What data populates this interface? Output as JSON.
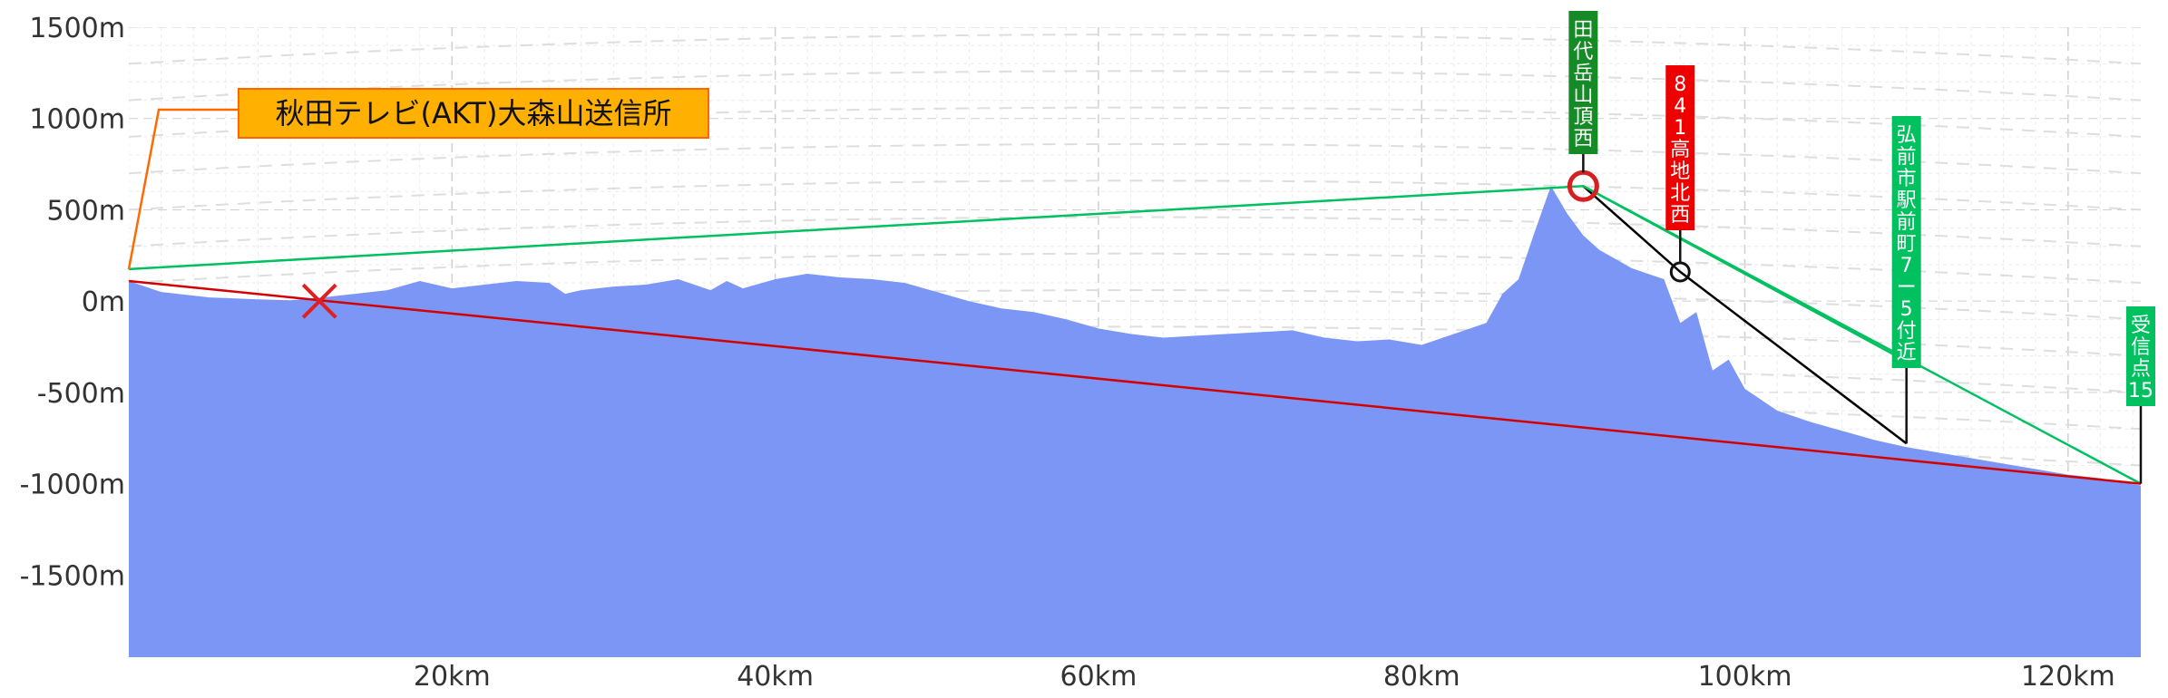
{
  "chart_data": {
    "type": "area",
    "x_unit": "km",
    "y_unit": "m",
    "xlim": [
      0,
      124.5
    ],
    "ylim": [
      -1950,
      1500
    ],
    "x_ticks": [
      {
        "value": 20,
        "label": "20km"
      },
      {
        "value": 40,
        "label": "40km"
      },
      {
        "value": 60,
        "label": "60km"
      },
      {
        "value": 80,
        "label": "80km"
      },
      {
        "value": 100,
        "label": "100km"
      },
      {
        "value": 120,
        "label": "120km"
      }
    ],
    "y_ticks": [
      {
        "value": 1500,
        "label": "1500m"
      },
      {
        "value": 1000,
        "label": "1000m"
      },
      {
        "value": 500,
        "label": "500m"
      },
      {
        "value": 0,
        "label": "0m"
      },
      {
        "value": -500,
        "label": "-500m"
      },
      {
        "value": -1000,
        "label": "-1000m"
      },
      {
        "value": -1500,
        "label": "-1500m"
      }
    ],
    "grid": true,
    "terrain_profile": {
      "x": [
        0,
        2,
        5,
        8,
        10,
        12,
        14,
        16,
        18,
        20,
        22,
        24,
        26,
        27,
        28,
        30,
        32,
        34,
        36,
        37,
        38,
        40,
        42,
        44,
        46,
        48,
        50,
        52,
        54,
        56,
        58,
        60,
        62,
        64,
        66,
        68,
        70,
        72,
        74,
        76,
        78,
        80,
        82,
        84,
        85,
        86,
        87,
        88,
        89,
        90,
        91,
        92,
        93,
        94,
        95,
        96,
        97,
        98,
        99,
        100,
        102,
        104,
        106,
        108,
        110,
        112,
        114,
        116,
        118,
        120,
        122,
        124.5
      ],
      "y": [
        110,
        50,
        20,
        10,
        5,
        20,
        40,
        60,
        110,
        70,
        90,
        110,
        100,
        40,
        60,
        80,
        90,
        120,
        60,
        110,
        70,
        120,
        150,
        130,
        120,
        100,
        50,
        0,
        -40,
        -60,
        -100,
        -150,
        -180,
        -200,
        -190,
        -180,
        -170,
        -160,
        -200,
        -220,
        -210,
        -240,
        -180,
        -120,
        40,
        120,
        380,
        630,
        480,
        360,
        280,
        230,
        180,
        150,
        120,
        -120,
        -60,
        -380,
        -320,
        -480,
        -600,
        -660,
        -710,
        -760,
        -800,
        -830,
        -860,
        -890,
        -920,
        -950,
        -970,
        -1010
      ]
    },
    "sight_lines": [
      {
        "color": "#00c060",
        "points": [
          [
            0,
            175
          ],
          [
            90,
            630
          ],
          [
            124.5,
            -1000
          ]
        ]
      },
      {
        "color": "#000000",
        "points": [
          [
            90,
            630
          ],
          [
            96,
            160
          ],
          [
            110,
            -780
          ]
        ]
      },
      {
        "color": "#00c060",
        "points": [
          [
            90,
            630
          ],
          [
            110,
            -330
          ]
        ]
      },
      {
        "color": "#d40000",
        "points": [
          [
            0,
            110
          ],
          [
            124.5,
            -1000
          ]
        ]
      }
    ],
    "markers": [
      {
        "type": "x",
        "x": 11.8,
        "y": 0,
        "color": "#e02020"
      },
      {
        "type": "circle",
        "x": 90,
        "y": 630,
        "color": "#d42020",
        "size": "large"
      },
      {
        "type": "circle",
        "x": 96,
        "y": 160,
        "color": "#111111",
        "size": "small"
      }
    ],
    "annotations": [
      {
        "name": "transmitter",
        "text": "秋田テレビ(AKT)大森山送信所",
        "orientation": "horizontal",
        "bg": "#ffb000",
        "border": "#ff6600",
        "text_color": "#111111",
        "line_color": "#ff6a00",
        "x": 0,
        "y": 175
      },
      {
        "name": "tashiro-peak",
        "text": "田代岳山頂西",
        "orientation": "vertical",
        "bg": "#158a26",
        "text_color": "#ffffff",
        "line_color": "#111111",
        "x": 90,
        "y": 630
      },
      {
        "name": "hill-841",
        "text": "841高地北西",
        "orientation": "vertical",
        "bg": "#ee0000",
        "text_color": "#ffffff",
        "line_color": "#111111",
        "x": 96,
        "y": 160
      },
      {
        "name": "hirosaki-station",
        "text": "弘前市駅前町7ー5付近",
        "orientation": "vertical",
        "bg": "#00c060",
        "text_color": "#ffffff",
        "line_color": "#111111",
        "x": 110,
        "y": -780
      },
      {
        "name": "receiving-point",
        "text": "受信点15",
        "orientation": "vertical",
        "bg": "#00c060",
        "text_color": "#ffffff",
        "line_color": "#111111",
        "x": 124.5,
        "y": -1000
      }
    ],
    "colors": {
      "terrain_fill": "#7b96f5",
      "grid_major": "#d0d0d0",
      "grid_minor": "#ececec"
    }
  }
}
